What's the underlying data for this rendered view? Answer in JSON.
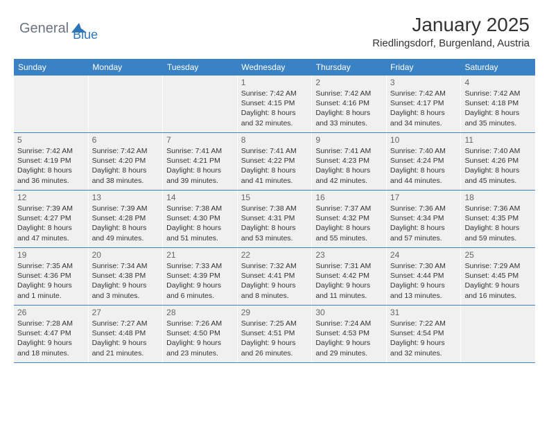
{
  "logo": {
    "text1": "General",
    "text2": "Blue"
  },
  "header": {
    "title": "January 2025",
    "location": "Riedlingsdorf, Burgenland, Austria"
  },
  "colors": {
    "header_bg": "#3b82c4",
    "header_text": "#ffffff",
    "cell_bg": "#f0f0f0",
    "border": "#3b82c4",
    "logo_gray": "#6b7280",
    "logo_blue": "#2c76b8"
  },
  "weekdays": [
    "Sunday",
    "Monday",
    "Tuesday",
    "Wednesday",
    "Thursday",
    "Friday",
    "Saturday"
  ],
  "weeks": [
    [
      null,
      null,
      null,
      {
        "n": "1",
        "sr": "7:42 AM",
        "ss": "4:15 PM",
        "dl": "8 hours and 32 minutes."
      },
      {
        "n": "2",
        "sr": "7:42 AM",
        "ss": "4:16 PM",
        "dl": "8 hours and 33 minutes."
      },
      {
        "n": "3",
        "sr": "7:42 AM",
        "ss": "4:17 PM",
        "dl": "8 hours and 34 minutes."
      },
      {
        "n": "4",
        "sr": "7:42 AM",
        "ss": "4:18 PM",
        "dl": "8 hours and 35 minutes."
      }
    ],
    [
      {
        "n": "5",
        "sr": "7:42 AM",
        "ss": "4:19 PM",
        "dl": "8 hours and 36 minutes."
      },
      {
        "n": "6",
        "sr": "7:42 AM",
        "ss": "4:20 PM",
        "dl": "8 hours and 38 minutes."
      },
      {
        "n": "7",
        "sr": "7:41 AM",
        "ss": "4:21 PM",
        "dl": "8 hours and 39 minutes."
      },
      {
        "n": "8",
        "sr": "7:41 AM",
        "ss": "4:22 PM",
        "dl": "8 hours and 41 minutes."
      },
      {
        "n": "9",
        "sr": "7:41 AM",
        "ss": "4:23 PM",
        "dl": "8 hours and 42 minutes."
      },
      {
        "n": "10",
        "sr": "7:40 AM",
        "ss": "4:24 PM",
        "dl": "8 hours and 44 minutes."
      },
      {
        "n": "11",
        "sr": "7:40 AM",
        "ss": "4:26 PM",
        "dl": "8 hours and 45 minutes."
      }
    ],
    [
      {
        "n": "12",
        "sr": "7:39 AM",
        "ss": "4:27 PM",
        "dl": "8 hours and 47 minutes."
      },
      {
        "n": "13",
        "sr": "7:39 AM",
        "ss": "4:28 PM",
        "dl": "8 hours and 49 minutes."
      },
      {
        "n": "14",
        "sr": "7:38 AM",
        "ss": "4:30 PM",
        "dl": "8 hours and 51 minutes."
      },
      {
        "n": "15",
        "sr": "7:38 AM",
        "ss": "4:31 PM",
        "dl": "8 hours and 53 minutes."
      },
      {
        "n": "16",
        "sr": "7:37 AM",
        "ss": "4:32 PM",
        "dl": "8 hours and 55 minutes."
      },
      {
        "n": "17",
        "sr": "7:36 AM",
        "ss": "4:34 PM",
        "dl": "8 hours and 57 minutes."
      },
      {
        "n": "18",
        "sr": "7:36 AM",
        "ss": "4:35 PM",
        "dl": "8 hours and 59 minutes."
      }
    ],
    [
      {
        "n": "19",
        "sr": "7:35 AM",
        "ss": "4:36 PM",
        "dl": "9 hours and 1 minute."
      },
      {
        "n": "20",
        "sr": "7:34 AM",
        "ss": "4:38 PM",
        "dl": "9 hours and 3 minutes."
      },
      {
        "n": "21",
        "sr": "7:33 AM",
        "ss": "4:39 PM",
        "dl": "9 hours and 6 minutes."
      },
      {
        "n": "22",
        "sr": "7:32 AM",
        "ss": "4:41 PM",
        "dl": "9 hours and 8 minutes."
      },
      {
        "n": "23",
        "sr": "7:31 AM",
        "ss": "4:42 PM",
        "dl": "9 hours and 11 minutes."
      },
      {
        "n": "24",
        "sr": "7:30 AM",
        "ss": "4:44 PM",
        "dl": "9 hours and 13 minutes."
      },
      {
        "n": "25",
        "sr": "7:29 AM",
        "ss": "4:45 PM",
        "dl": "9 hours and 16 minutes."
      }
    ],
    [
      {
        "n": "26",
        "sr": "7:28 AM",
        "ss": "4:47 PM",
        "dl": "9 hours and 18 minutes."
      },
      {
        "n": "27",
        "sr": "7:27 AM",
        "ss": "4:48 PM",
        "dl": "9 hours and 21 minutes."
      },
      {
        "n": "28",
        "sr": "7:26 AM",
        "ss": "4:50 PM",
        "dl": "9 hours and 23 minutes."
      },
      {
        "n": "29",
        "sr": "7:25 AM",
        "ss": "4:51 PM",
        "dl": "9 hours and 26 minutes."
      },
      {
        "n": "30",
        "sr": "7:24 AM",
        "ss": "4:53 PM",
        "dl": "9 hours and 29 minutes."
      },
      {
        "n": "31",
        "sr": "7:22 AM",
        "ss": "4:54 PM",
        "dl": "9 hours and 32 minutes."
      },
      null
    ]
  ],
  "labels": {
    "sunrise": "Sunrise:",
    "sunset": "Sunset:",
    "daylight": "Daylight:"
  }
}
